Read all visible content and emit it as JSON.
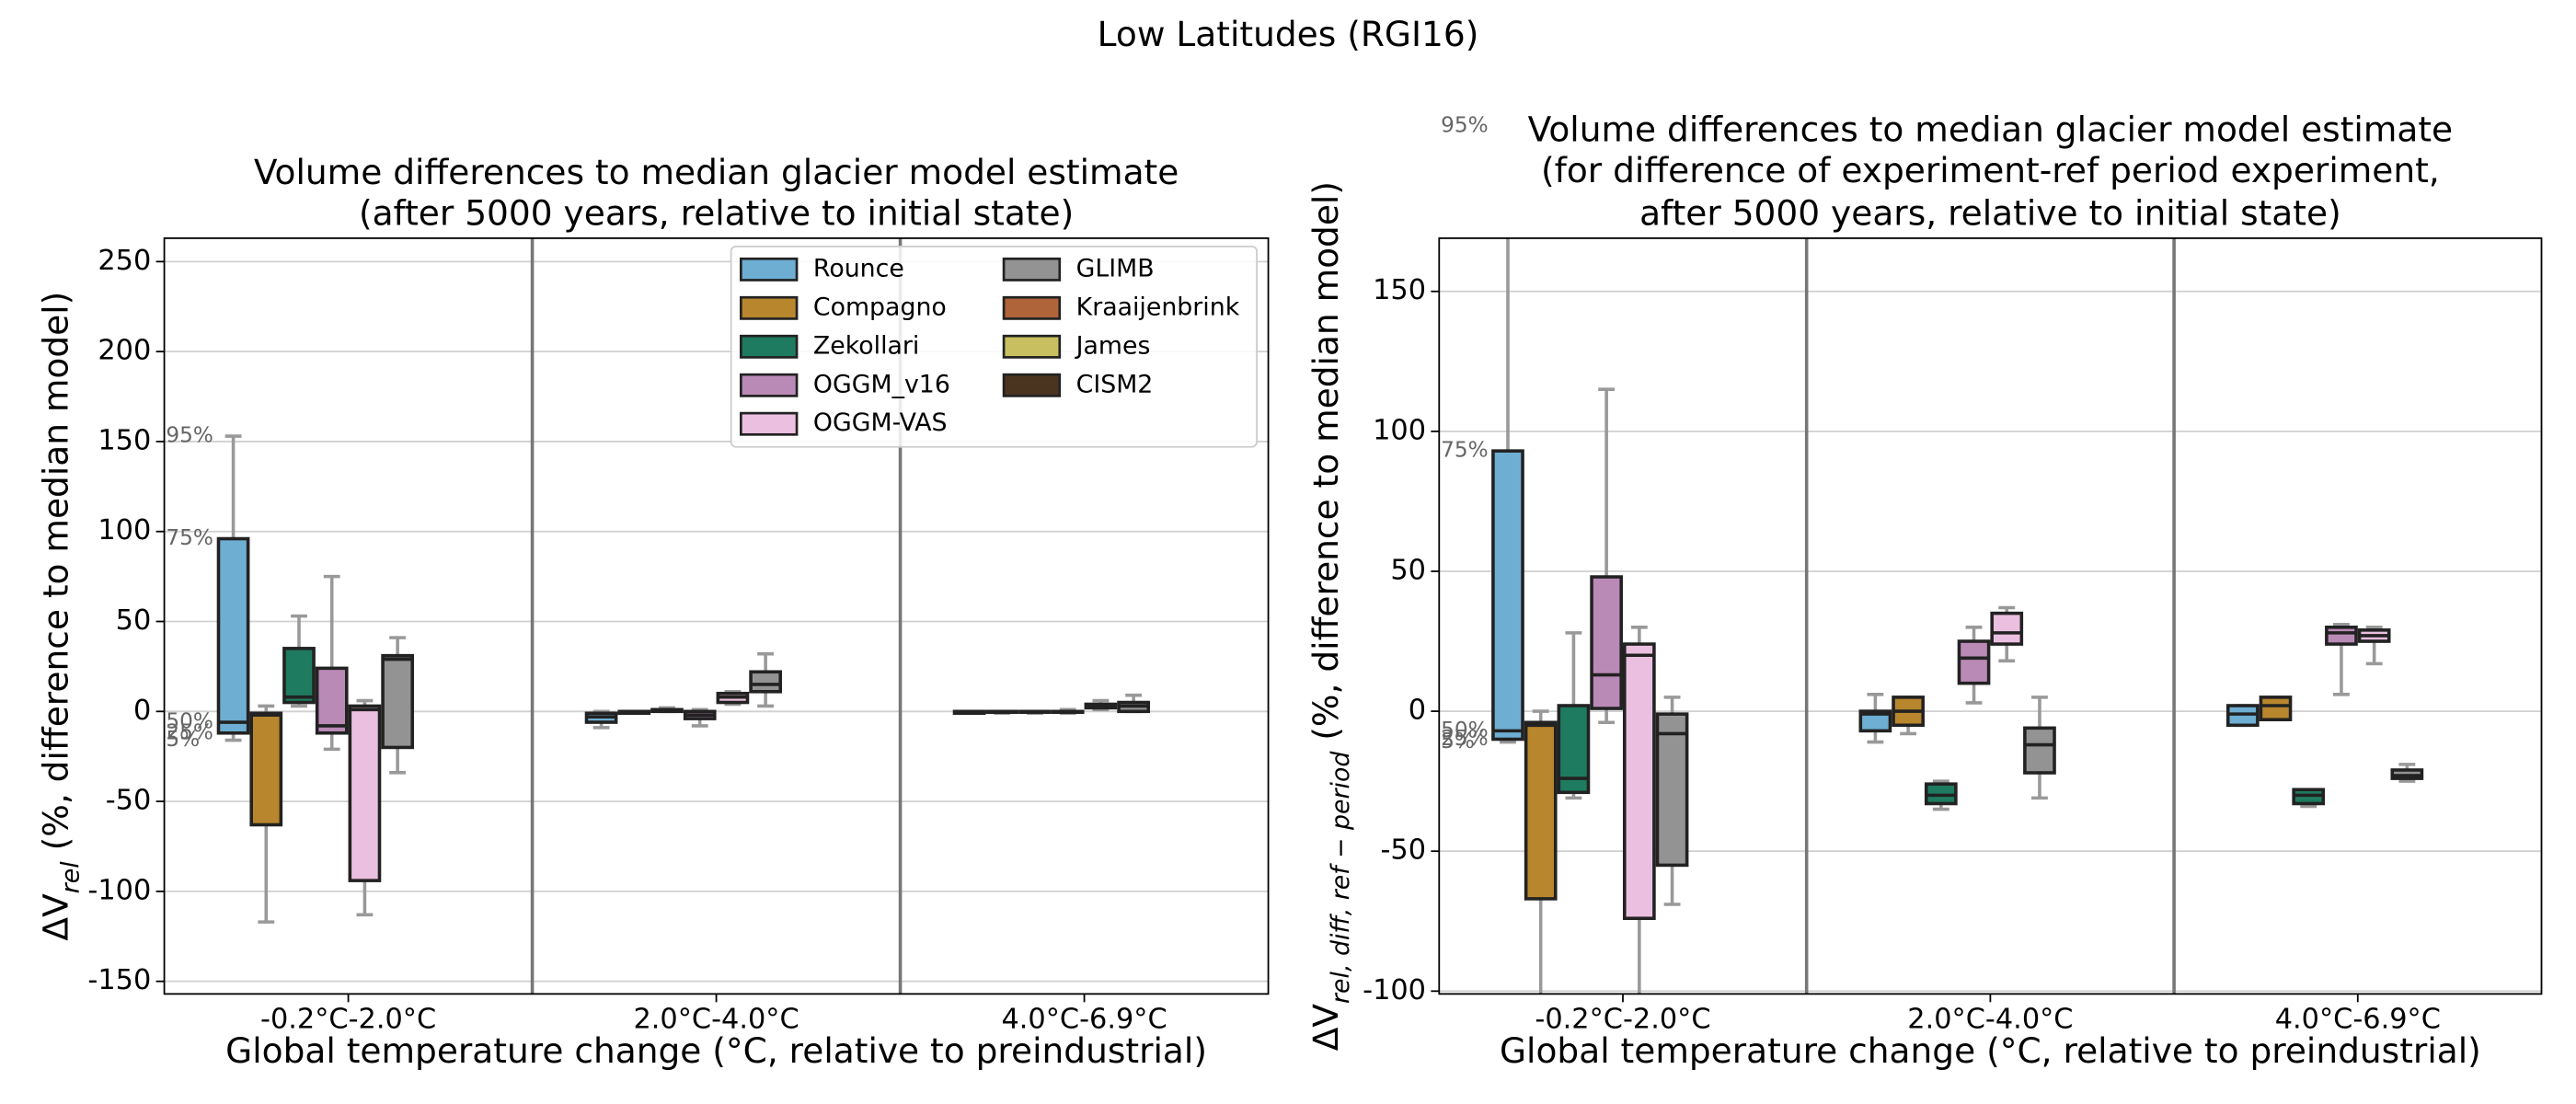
{
  "suptitle": "Low Latitudes (RGI16)",
  "chart_data": [
    {
      "type": "box",
      "title": [
        "Volume differences to median glacier model estimate",
        "(after 5000 years, relative to initial state)"
      ],
      "xlabel": "Global temperature change (°C, relative to preindustrial)",
      "ylabel": {
        "main": "ΔV",
        "sub": "rel",
        "rest": " (%, difference to median model)"
      },
      "categories": [
        "-0.2°C-2.0°C",
        "2.0°C-4.0°C",
        "4.0°C-6.9°C"
      ],
      "ylim": [
        -157,
        263
      ],
      "yticks": [
        -150,
        -100,
        -50,
        0,
        50,
        100,
        150,
        200,
        250
      ],
      "grid": true,
      "legend": "upper right",
      "quantile_labels": [
        "5%",
        "25%",
        "50%",
        "75%",
        "95%"
      ],
      "series": [
        {
          "name": "Rounce",
          "color": "#6eaed3",
          "values": [
            [
              -16,
              -12,
              -6,
              96,
              153
            ],
            [
              -9,
              -6,
              -3,
              -1,
              0
            ],
            [
              -1,
              -1,
              0,
              0,
              0
            ]
          ]
        },
        {
          "name": "Compagno",
          "color": "#b8862c",
          "values": [
            [
              -117,
              -63,
              -2,
              -1,
              3
            ],
            [
              -1,
              -1,
              0,
              0,
              0
            ],
            [
              -1,
              0,
              0,
              0,
              0
            ]
          ]
        },
        {
          "name": "Zekollari",
          "color": "#1e7b5f",
          "values": [
            [
              3,
              5,
              8,
              35,
              53
            ],
            [
              0,
              0,
              1,
              1,
              2
            ],
            [
              -1,
              0,
              0,
              0,
              0
            ]
          ]
        },
        {
          "name": "OGGM_v16",
          "color": "#ba8ab7",
          "values": [
            [
              -21,
              -12,
              -8,
              24,
              75
            ],
            [
              -8,
              -4,
              -2,
              0,
              1
            ],
            [
              -1,
              0,
              0,
              0,
              1
            ]
          ]
        },
        {
          "name": "OGGM-VAS",
          "color": "#ebbfdf",
          "values": [
            [
              -113,
              -94,
              1,
              3,
              6
            ],
            [
              4,
              5,
              8,
              10,
              11
            ],
            [
              1,
              2,
              3,
              4,
              6
            ]
          ]
        },
        {
          "name": "GLIMB",
          "color": "#939393",
          "values": [
            [
              -34,
              -20,
              29,
              31,
              41
            ],
            [
              3,
              11,
              15,
              22,
              32
            ],
            [
              0,
              0,
              3,
              5,
              9
            ]
          ]
        },
        {
          "name": "Kraaijenbrink",
          "color": "#b0643a",
          "values": [
            null,
            null,
            null
          ]
        },
        {
          "name": "James",
          "color": "#c8c060",
          "values": [
            null,
            null,
            null
          ]
        },
        {
          "name": "CISM2",
          "color": "#4a3420",
          "values": [
            null,
            null,
            null
          ]
        }
      ]
    },
    {
      "type": "box",
      "title": [
        "Volume differences to median glacier model estimate",
        "(for difference of experiment-ref period experiment,",
        "after 5000 years, relative to initial state)"
      ],
      "xlabel": "Global temperature change (°C, relative to preindustrial)",
      "ylabel": {
        "main": "ΔV",
        "sub": "rel, diff, ref − period",
        "rest": " (%, difference to median model)"
      },
      "categories": [
        "-0.2°C-2.0°C",
        "2.0°C-4.0°C",
        "4.0°C-6.9°C"
      ],
      "ylim": [
        -101,
        169
      ],
      "yticks": [
        -100,
        -50,
        0,
        50,
        100,
        150
      ],
      "grid": true,
      "quantile_labels": [
        "5%",
        "25%",
        "50%",
        "75%",
        "95%"
      ],
      "series": [
        {
          "name": "Rounce",
          "color": "#6eaed3",
          "values": [
            [
              -11,
              -10,
              -7,
              93,
              209
            ],
            [
              -11,
              -7,
              -1,
              0,
              6
            ],
            [
              -5,
              -5,
              -1,
              2,
              2
            ]
          ]
        },
        {
          "name": "Compagno",
          "color": "#b8862c",
          "values": [
            [
              -110,
              -67,
              -5,
              -4,
              0
            ],
            [
              -8,
              -5,
              0,
              5,
              5
            ],
            [
              -3,
              -3,
              2,
              5,
              5
            ]
          ]
        },
        {
          "name": "Zekollari",
          "color": "#1e7b5f",
          "values": [
            [
              -31,
              -29,
              -24,
              2,
              28
            ],
            [
              -35,
              -33,
              -30,
              -26,
              -25
            ],
            [
              -34,
              -33,
              -30,
              -28,
              -28
            ]
          ]
        },
        {
          "name": "OGGM_v16",
          "color": "#ba8ab7",
          "values": [
            [
              -4,
              1,
              13,
              48,
              115
            ],
            [
              3,
              10,
              19,
              25,
              30
            ],
            [
              6,
              24,
              28,
              30,
              31
            ]
          ]
        },
        {
          "name": "OGGM-VAS",
          "color": "#ebbfdf",
          "values": [
            [
              -105,
              -74,
              20,
              24,
              30
            ],
            [
              18,
              24,
              28,
              35,
              37
            ],
            [
              17,
              25,
              27,
              29,
              30
            ]
          ]
        },
        {
          "name": "GLIMB",
          "color": "#939393",
          "values": [
            [
              -69,
              -55,
              -8,
              -1,
              5
            ],
            [
              -31,
              -22,
              -12,
              -6,
              5
            ],
            [
              -25,
              -24,
              -23,
              -21,
              -19
            ]
          ]
        },
        {
          "name": "Kraaijenbrink",
          "color": "#b0643a",
          "values": [
            null,
            null,
            null
          ]
        },
        {
          "name": "James",
          "color": "#c8c060",
          "values": [
            null,
            null,
            null
          ]
        },
        {
          "name": "CISM2",
          "color": "#4a3420",
          "values": [
            null,
            null,
            null
          ]
        }
      ]
    }
  ]
}
